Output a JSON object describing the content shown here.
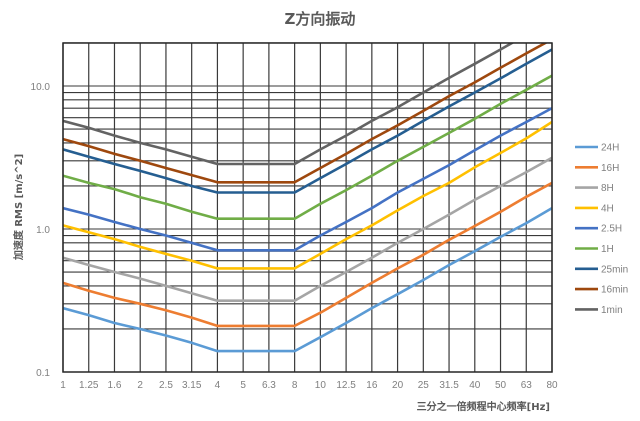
{
  "chart_data": {
    "type": "line",
    "title": "Z方向振动",
    "xlabel": "三分之一倍频程中心频率[Hz]",
    "ylabel": "加速度 RMS [m/s^2]",
    "xscale": "category (1/3 octave)",
    "yscale": "log",
    "ylim": [
      0.1,
      20
    ],
    "grid": true,
    "legend_position": "right",
    "categories": [
      "1",
      "1.25",
      "1.6",
      "2",
      "2.5",
      "3.15",
      "4",
      "5",
      "6.3",
      "8",
      "10",
      "12.5",
      "16",
      "20",
      "25",
      "31.5",
      "40",
      "50",
      "63",
      "80"
    ],
    "y_ticks": [
      "0.1",
      "1.0",
      "10.0"
    ],
    "series": [
      {
        "name": "24H",
        "color": "#5b9bd5",
        "values": [
          0.28,
          0.25,
          0.22,
          0.2,
          0.18,
          0.16,
          0.14,
          0.14,
          0.14,
          0.14,
          0.175,
          0.22,
          0.28,
          0.35,
          0.44,
          0.56,
          0.7,
          0.88,
          1.1,
          1.4
        ]
      },
      {
        "name": "16H",
        "color": "#ed7d31",
        "values": [
          0.42,
          0.37,
          0.33,
          0.3,
          0.27,
          0.24,
          0.21,
          0.21,
          0.21,
          0.21,
          0.26,
          0.33,
          0.42,
          0.53,
          0.66,
          0.84,
          1.05,
          1.32,
          1.68,
          2.1
        ]
      },
      {
        "name": "8H",
        "color": "#a5a5a5",
        "values": [
          0.63,
          0.56,
          0.5,
          0.45,
          0.4,
          0.355,
          0.315,
          0.315,
          0.315,
          0.315,
          0.4,
          0.5,
          0.63,
          0.8,
          1.0,
          1.26,
          1.6,
          2.0,
          2.5,
          3.15
        ]
      },
      {
        "name": "4H",
        "color": "#ffc000",
        "values": [
          1.06,
          0.95,
          0.85,
          0.75,
          0.67,
          0.6,
          0.53,
          0.53,
          0.53,
          0.53,
          0.67,
          0.85,
          1.06,
          1.35,
          1.7,
          2.1,
          2.7,
          3.4,
          4.3,
          5.6
        ]
      },
      {
        "name": "2.5H",
        "color": "#4472c4",
        "values": [
          1.4,
          1.26,
          1.12,
          1.0,
          0.9,
          0.8,
          0.71,
          0.71,
          0.71,
          0.71,
          0.9,
          1.12,
          1.4,
          1.8,
          2.24,
          2.8,
          3.55,
          4.5,
          5.6,
          7.0
        ]
      },
      {
        "name": "1H",
        "color": "#70ad47",
        "values": [
          2.36,
          2.1,
          1.9,
          1.67,
          1.5,
          1.32,
          1.18,
          1.18,
          1.18,
          1.18,
          1.5,
          1.87,
          2.36,
          3.0,
          3.75,
          4.7,
          5.9,
          7.5,
          9.4,
          11.8
        ]
      },
      {
        "name": "25min",
        "color": "#255e91",
        "values": [
          3.6,
          3.2,
          2.85,
          2.55,
          2.27,
          2.0,
          1.8,
          1.8,
          1.8,
          1.8,
          2.27,
          2.85,
          3.6,
          4.5,
          5.7,
          7.2,
          9.0,
          11.3,
          14.3,
          18.0
        ]
      },
      {
        "name": "16min",
        "color": "#9e480e",
        "values": [
          4.25,
          3.8,
          3.35,
          3.0,
          2.67,
          2.38,
          2.12,
          2.12,
          2.12,
          2.12,
          2.67,
          3.35,
          4.25,
          5.3,
          6.7,
          8.5,
          10.6,
          13.4,
          16.9,
          21.2
        ]
      },
      {
        "name": "1min",
        "color": "#636363",
        "values": [
          5.7,
          5.1,
          4.5,
          4.0,
          3.6,
          3.2,
          2.85,
          2.85,
          2.85,
          2.85,
          3.6,
          4.5,
          5.7,
          7.1,
          9.0,
          11.4,
          14.3,
          18.0,
          22.8,
          28.5
        ]
      }
    ]
  }
}
